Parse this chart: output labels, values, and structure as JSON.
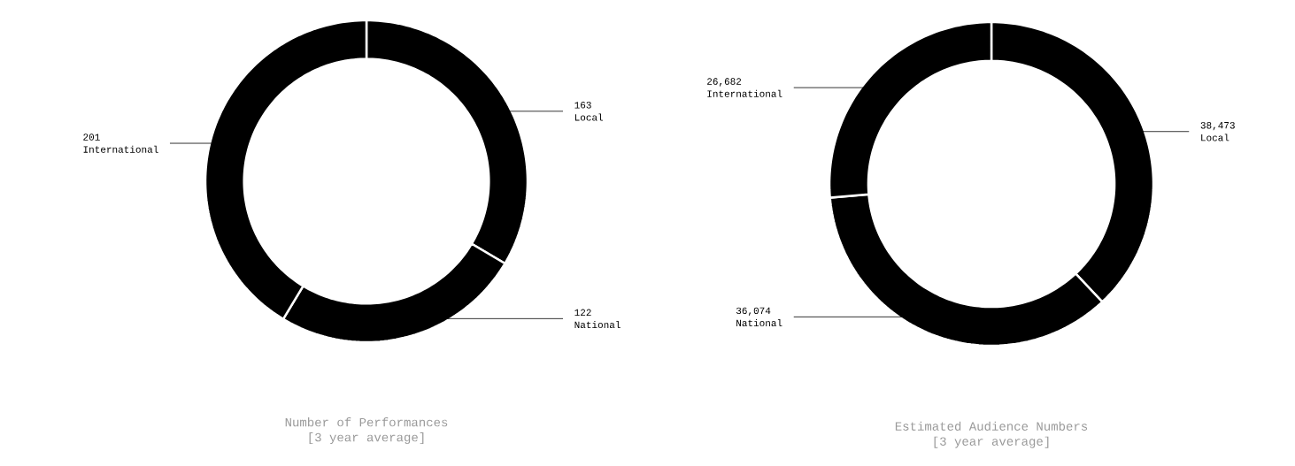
{
  "chart_data": [
    {
      "type": "donut",
      "title": "Number of Performances",
      "subtitle": "[3 year average]",
      "categories": [
        "Local",
        "National",
        "International"
      ],
      "values": [
        163,
        122,
        201
      ],
      "value_labels": [
        "163",
        "122",
        "201"
      ],
      "colors": [
        "#000000",
        "#000000",
        "#000000"
      ]
    },
    {
      "type": "donut",
      "title": "Estimated Audience Numbers",
      "subtitle": "[3 year average]",
      "categories": [
        "Local",
        "National",
        "International"
      ],
      "values": [
        38473,
        36074,
        26682
      ],
      "value_labels": [
        "38,473",
        "36,074",
        "26,682"
      ],
      "colors": [
        "#000000",
        "#000000",
        "#000000"
      ]
    }
  ]
}
